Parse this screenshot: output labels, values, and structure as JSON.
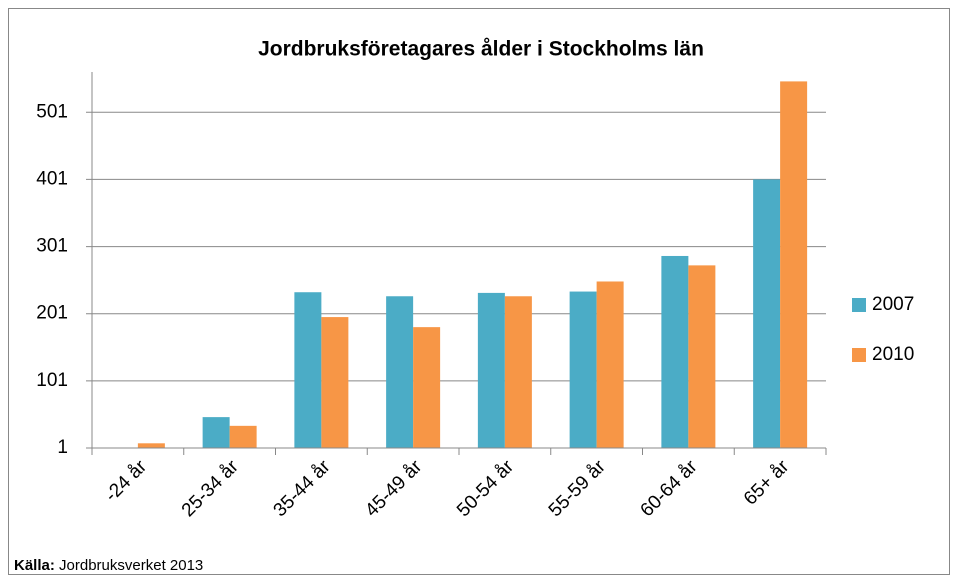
{
  "chart_data": {
    "type": "bar",
    "title": "Jordbruksföretagares ålder i Stockholms län",
    "categories": [
      "-24 år",
      "25-34 år",
      "35-44 år",
      "45-49 år",
      "50-54 år",
      "55-59 år",
      "60-64 år",
      "65+ år"
    ],
    "series": [
      {
        "name": "2007",
        "color": "#4bacc6",
        "values": [
          1,
          47,
          233,
          227,
          232,
          234,
          287,
          401
        ]
      },
      {
        "name": "2010",
        "color": "#f79646",
        "values": [
          8,
          34,
          196,
          181,
          227,
          249,
          273,
          547
        ]
      }
    ],
    "ylim": [
      1,
      561
    ],
    "yticks": [
      1,
      101,
      201,
      301,
      401,
      501
    ],
    "grid": true,
    "legend": "right",
    "source_label": "Källa:",
    "source": "Jordbruksverket 2013"
  }
}
